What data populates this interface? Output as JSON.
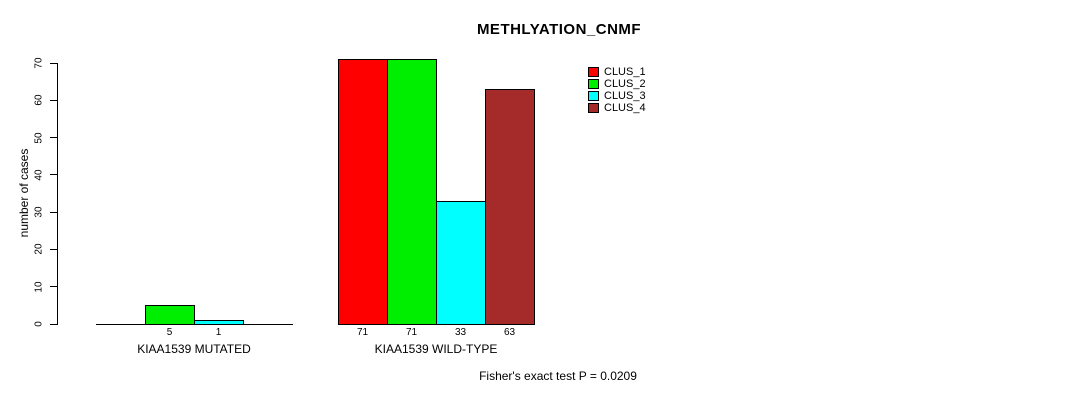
{
  "header": {
    "title": "METHLYATION_CNMF"
  },
  "footer": {
    "annotation": "Fisher's exact test P = 0.0209"
  },
  "chart_data": {
    "type": "bar",
    "title": "METHLYATION_CNMF",
    "xlabel": "",
    "ylabel": "number of cases",
    "ylim": [
      0,
      70
    ],
    "yticks": [
      0,
      10,
      20,
      30,
      40,
      50,
      60,
      70
    ],
    "grid": false,
    "categories": [
      "KIAA1539 MUTATED",
      "KIAA1539 WILD-TYPE"
    ],
    "series": [
      {
        "name": "CLUS_1",
        "color": "#ff0000",
        "values": [
          0,
          71
        ]
      },
      {
        "name": "CLUS_2",
        "color": "#00ee00",
        "values": [
          5,
          71
        ]
      },
      {
        "name": "CLUS_3",
        "color": "#00ffff",
        "values": [
          1,
          33
        ]
      },
      {
        "name": "CLUS_4",
        "color": "#a52a2a",
        "values": [
          0,
          63
        ]
      }
    ],
    "bar_value_labels": [
      [
        "",
        "5",
        "1",
        ""
      ],
      [
        "71",
        "71",
        "33",
        "63"
      ]
    ],
    "legend": {
      "position": "top-right",
      "entries": [
        "CLUS_1",
        "CLUS_2",
        "CLUS_3",
        "CLUS_4"
      ]
    },
    "annotation": "Fisher's exact test P = 0.0209",
    "axis_color": "#000000",
    "bar_border_color": "#000000",
    "text_color": "#000000"
  }
}
